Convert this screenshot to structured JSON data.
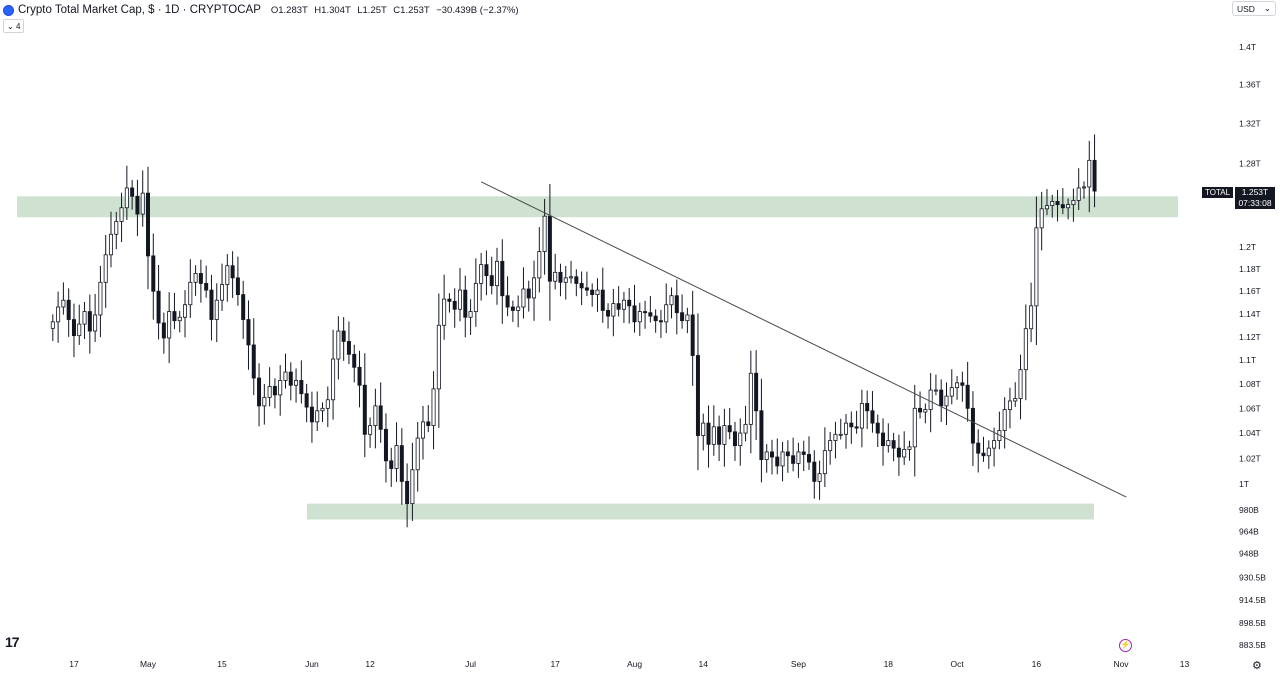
{
  "header": {
    "title": "Crypto Total Market Cap, $ · 1D · CRYPTOCAP",
    "open_label": "O",
    "open": "1.283T",
    "high_label": "H",
    "high": "1.304T",
    "low_label": "L",
    "low": "1.25T",
    "close_label": "C",
    "close": "1.253T",
    "change": "−30.439B (−2.37%)",
    "indicator_count": "4",
    "currency": "USD"
  },
  "price_tag": {
    "series": "TOTAL",
    "value": "1.253T",
    "countdown": "07:33:08"
  },
  "icons": {
    "symbol": "crypto-logo-icon",
    "logo": "tradingview-logo-icon",
    "replay": "lightning-icon",
    "settings": "gear-icon"
  },
  "logo_text": "17",
  "chart_data": {
    "type": "candlestick",
    "title": "",
    "y_axis": {
      "scale": "log",
      "ticks": [
        883.5,
        898.5,
        914.5,
        930.5,
        948,
        964,
        980,
        1000,
        1020,
        1040,
        1060,
        1080,
        1100,
        1120,
        1140,
        1160,
        1180,
        1200,
        1280,
        1320,
        1360,
        1400
      ],
      "tick_labels": [
        "883.5B",
        "898.5B",
        "914.5B",
        "930.5B",
        "948B",
        "964B",
        "980B",
        "1T",
        "1.02T",
        "1.04T",
        "1.06T",
        "1.08T",
        "1.1T",
        "1.12T",
        "1.14T",
        "1.16T",
        "1.18T",
        "1.2T",
        "1.28T",
        "1.32T",
        "1.36T",
        "1.4T"
      ]
    },
    "x_axis": {
      "ticks": [
        "17",
        "May",
        "15",
        "Jun",
        "12",
        "Jul",
        "17",
        "Aug",
        "14",
        "Sep",
        "18",
        "Oct",
        "16",
        "Nov",
        "13"
      ],
      "tick_days": [
        -14,
        0,
        14,
        31,
        42,
        61,
        77,
        92,
        105,
        123,
        140,
        153,
        168,
        184,
        196
      ]
    },
    "first_day": -18,
    "close_series_B": [
      1133,
      1146,
      1152,
      1135,
      1121,
      1131,
      1142,
      1125,
      1139,
      1168,
      1193,
      1212,
      1224,
      1237,
      1256,
      1248,
      1231,
      1251,
      1192,
      1160,
      1132,
      1119,
      1142,
      1134,
      1137,
      1148,
      1168,
      1176,
      1167,
      1161,
      1135,
      1152,
      1166,
      1183,
      1172,
      1157,
      1135,
      1113,
      1085,
      1062,
      1069,
      1078,
      1071,
      1083,
      1090,
      1079,
      1083,
      1072,
      1061,
      1049,
      1058,
      1060,
      1067,
      1101,
      1125,
      1116,
      1105,
      1094,
      1079,
      1039,
      1046,
      1062,
      1043,
      1018,
      1012,
      1030,
      1002,
      985,
      1011,
      1036,
      1049,
      1046,
      1076,
      1130,
      1153,
      1151,
      1144,
      1161,
      1137,
      1142,
      1167,
      1184,
      1174,
      1165,
      1187,
      1156,
      1146,
      1143,
      1146,
      1162,
      1154,
      1172,
      1196,
      1229,
      1169,
      1177,
      1168,
      1172,
      1173,
      1167,
      1163,
      1161,
      1157,
      1161,
      1143,
      1138,
      1149,
      1144,
      1152,
      1147,
      1133,
      1142,
      1141,
      1138,
      1134,
      1133,
      1148,
      1156,
      1141,
      1134,
      1139,
      1104,
      1038,
      1048,
      1031,
      1045,
      1031,
      1046,
      1041,
      1030,
      1040,
      1047,
      1089,
      1058,
      1019,
      1025,
      1021,
      1014,
      1025,
      1022,
      1016,
      1025,
      1023,
      1017,
      1002,
      1008,
      1026,
      1034,
      1039,
      1039,
      1048,
      1045,
      1044,
      1064,
      1058,
      1048,
      1040,
      1030,
      1034,
      1028,
      1021,
      1027,
      1029,
      1060,
      1057,
      1059,
      1075,
      1075,
      1062,
      1070,
      1077,
      1081,
      1079,
      1060,
      1032,
      1024,
      1022,
      1028,
      1034,
      1042,
      1059,
      1066,
      1068,
      1092,
      1127,
      1147,
      1218,
      1236,
      1239,
      1243,
      1240,
      1237,
      1240,
      1244,
      1256,
      1257,
      1283,
      1253
    ],
    "resistance_zone_B": [
      1228,
      1248
    ],
    "support_zone_B": [
      973,
      985
    ],
    "trendline": {
      "start": {
        "day": 63,
        "value_B": 1262
      },
      "end": {
        "day": 185,
        "value_B": 990
      }
    }
  }
}
